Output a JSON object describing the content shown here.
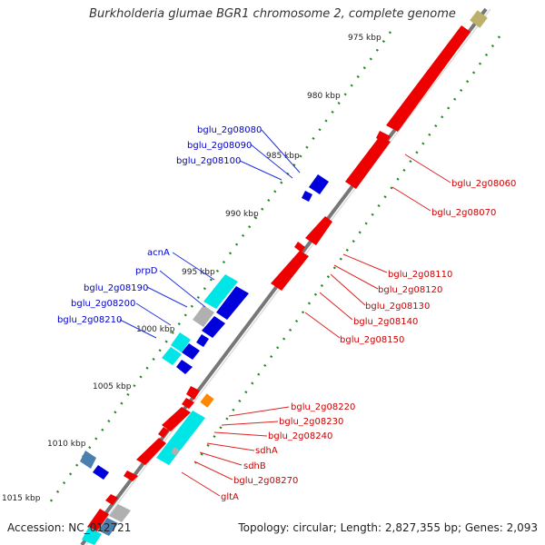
{
  "title": "Burkholderia glumae BGR1 chromosome 2, complete genome",
  "footer": {
    "accession": "Accession: NC_012721",
    "summary": "Topology: circular; Length: 2,827,355 bp; Genes: 2,093"
  },
  "scale_labels": [
    "975 kbp",
    "980 kbp",
    "985 kbp",
    "990 kbp",
    "995 kbp",
    "1000 kbp",
    "1005 kbp",
    "1010 kbp",
    "1015 kbp"
  ],
  "gene_labels_left": [
    "bglu_2g08080",
    "bglu_2g08090",
    "bglu_2g08100",
    "acnA",
    "prpD",
    "bglu_2g08190",
    "bglu_2g08200",
    "bglu_2g08210"
  ],
  "gene_labels_right": [
    "bglu_2g08060",
    "bglu_2g08070",
    "bglu_2g08110",
    "bglu_2g08120",
    "bglu_2g08130",
    "bglu_2g08140",
    "bglu_2g08150",
    "bglu_2g08220",
    "bglu_2g08230",
    "bglu_2g08240",
    "sdhA",
    "sdhB",
    "bglu_2g08270",
    "gltA"
  ],
  "colors": {
    "forward_gene": "#ee0000",
    "reverse_gene": "#0000dd",
    "cyan_gene": "#00e5e5",
    "grey_gene": "#b0b0b0",
    "orange_gene": "#ff8800",
    "khaki_gene": "#bdb06a",
    "steel_gene": "#4a7fb0",
    "backbone": "#888888",
    "tick": "#228822",
    "label_left": "#0000cc",
    "label_right": "#cc0000"
  }
}
